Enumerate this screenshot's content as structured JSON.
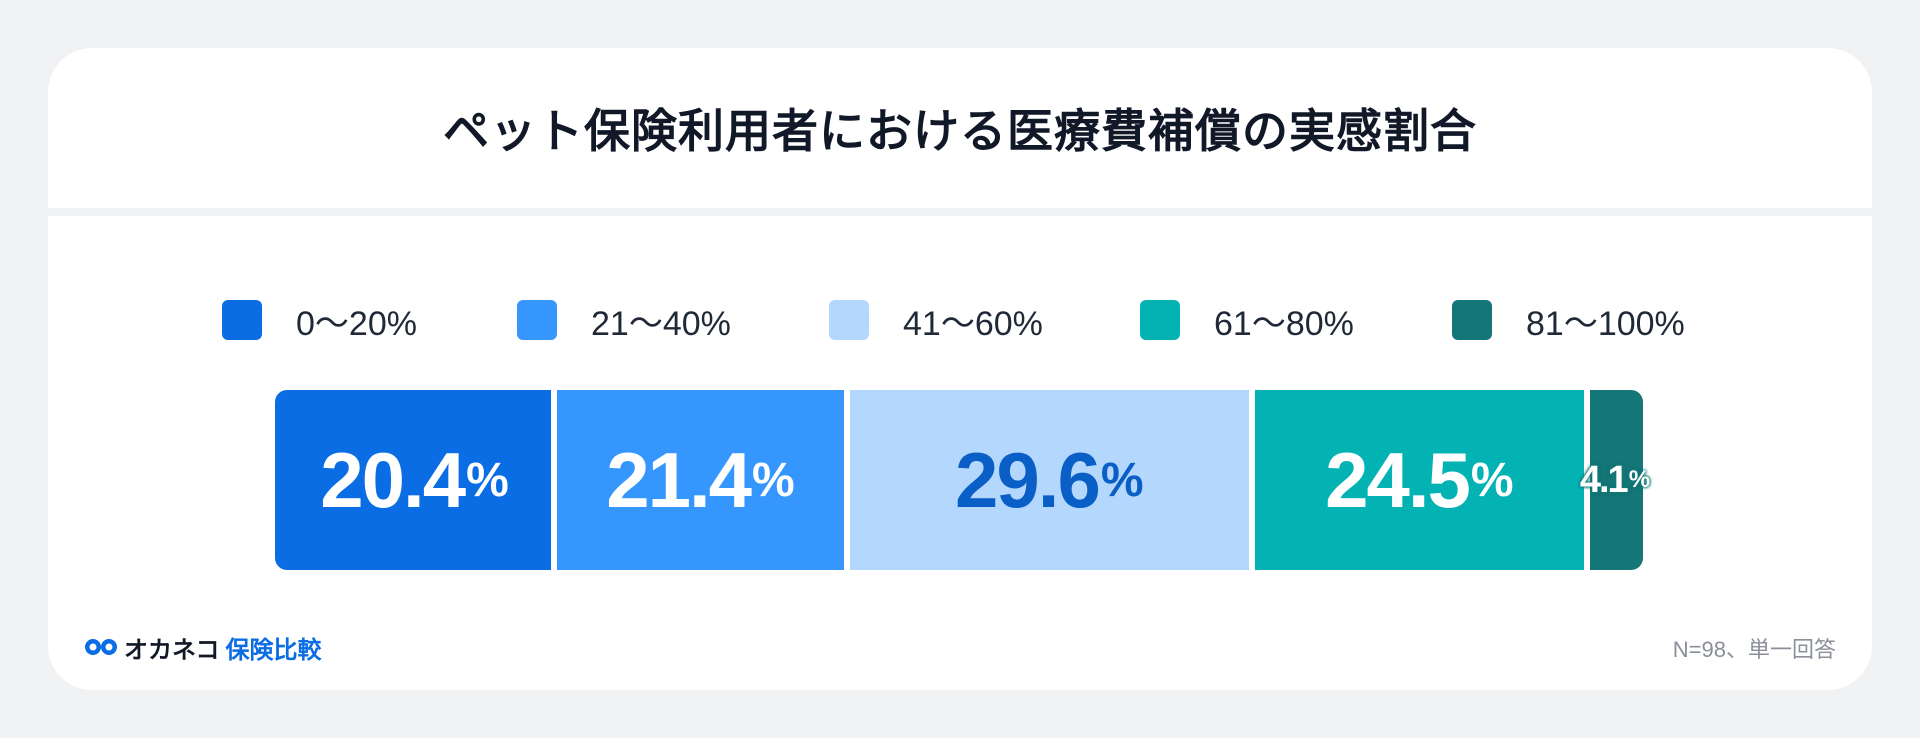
{
  "title": "ペット保険利用者における医療費補償の実感割合",
  "legend": [
    {
      "label": "0〜20%",
      "color": "#0a6de3"
    },
    {
      "label": "21〜40%",
      "color": "#3597fd"
    },
    {
      "label": "41〜60%",
      "color": "#b4d7fd"
    },
    {
      "label": "61〜80%",
      "color": "#03b2b3"
    },
    {
      "label": "81〜100%",
      "color": "#147676"
    }
  ],
  "chart_data": {
    "type": "bar",
    "orientation": "horizontal-stacked-100",
    "title": "ペット保険利用者における医療費補償の実感割合",
    "categories": [
      "0〜20%",
      "21〜40%",
      "41〜60%",
      "61〜80%",
      "81〜100%"
    ],
    "values": [
      20.4,
      21.4,
      29.6,
      24.5,
      4.1
    ],
    "value_labels": [
      "20.4",
      "21.4",
      "29.6",
      "24.5",
      "4.1"
    ],
    "value_suffix": "%",
    "label_colors": [
      "#ffffff",
      "#ffffff",
      "#0a5fc7",
      "#ffffff",
      "#ffffff"
    ],
    "legend_position": "top"
  },
  "logo": {
    "brand": "オカネコ",
    "product": "保険比較"
  },
  "footnote": "N=98、単一回答"
}
